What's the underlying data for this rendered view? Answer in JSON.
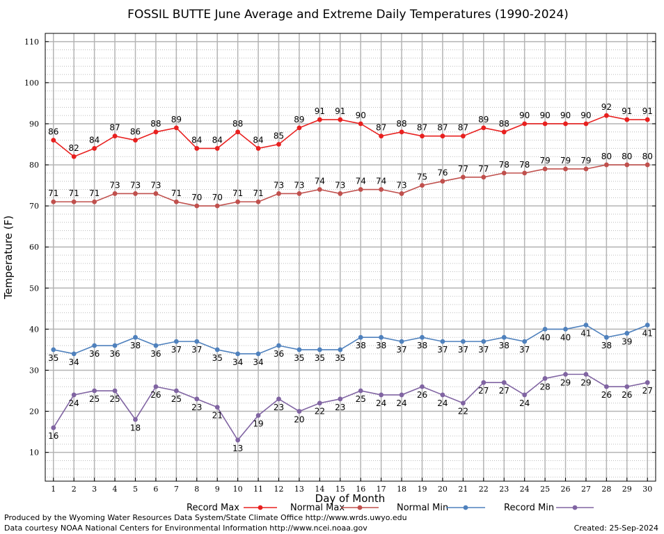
{
  "chart_data": {
    "type": "line",
    "title": "FOSSIL BUTTE June Average and Extreme Daily Temperatures (1990-2024)",
    "xlabel": "Day of Month",
    "ylabel": "Temperature (F)",
    "xlim": [
      0.6,
      30.4
    ],
    "ylim": [
      3,
      112
    ],
    "y_ticks": [
      10,
      20,
      30,
      40,
      50,
      60,
      70,
      80,
      90,
      100,
      110
    ],
    "x": [
      1,
      2,
      3,
      4,
      5,
      6,
      7,
      8,
      9,
      10,
      11,
      12,
      13,
      14,
      15,
      16,
      17,
      18,
      19,
      20,
      21,
      22,
      23,
      24,
      25,
      26,
      27,
      28,
      29,
      30
    ],
    "grid": true,
    "legend_position": "bottom",
    "series": [
      {
        "name": "Record Max",
        "color": "#e8201f",
        "label_position": "above",
        "values": [
          86,
          82,
          84,
          87,
          86,
          88,
          89,
          84,
          84,
          88,
          84,
          85,
          89,
          91,
          91,
          90,
          87,
          88,
          87,
          87,
          87,
          89,
          88,
          90,
          90,
          90,
          90,
          92,
          91,
          91
        ]
      },
      {
        "name": "Normal Max",
        "color": "#c0504d",
        "label_position": "above",
        "values": [
          71,
          71,
          71,
          73,
          73,
          73,
          71,
          70,
          70,
          71,
          71,
          73,
          73,
          74,
          73,
          74,
          74,
          73,
          75,
          76,
          77,
          77,
          78,
          78,
          79,
          79,
          79,
          80,
          80,
          80
        ]
      },
      {
        "name": "Normal Min",
        "color": "#4f81bd",
        "label_position": "below",
        "values": [
          35,
          34,
          36,
          36,
          38,
          36,
          37,
          37,
          35,
          34,
          34,
          36,
          35,
          35,
          35,
          38,
          38,
          37,
          38,
          37,
          37,
          37,
          38,
          37,
          40,
          40,
          41,
          38,
          39,
          41
        ]
      },
      {
        "name": "Record Min",
        "color": "#8064a2",
        "label_position": "below",
        "values": [
          16,
          24,
          25,
          25,
          18,
          26,
          25,
          23,
          21,
          13,
          19,
          23,
          20,
          22,
          23,
          25,
          24,
          24,
          26,
          24,
          22,
          27,
          27,
          24,
          28,
          29,
          29,
          26,
          26,
          27
        ]
      }
    ]
  },
  "footer": {
    "produced_by": "Produced by the Wyoming Water Resources Data System/State Climate Office http://www.wrds.uwyo.edu",
    "data_courtesy": "Data courtesy NOAA National Centers for Environmental Information http://www.ncei.noaa.gov",
    "created": "Created:  25-Sep-2024"
  }
}
